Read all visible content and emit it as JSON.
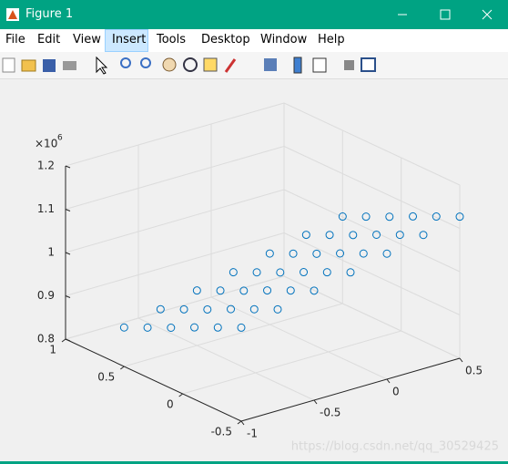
{
  "window": {
    "title": "Figure 1",
    "menu": [
      "File",
      "Edit",
      "View",
      "Insert",
      "Tools",
      "Desktop",
      "Window",
      "Help"
    ],
    "watermark": "https://blog.csdn.net/qq_30529425"
  },
  "chart_data": {
    "type": "scatter3",
    "x": [
      -1,
      -1,
      -1,
      -1,
      -1,
      -1,
      -0.75,
      -0.75,
      -0.75,
      -0.75,
      -0.75,
      -0.75,
      -0.5,
      -0.5,
      -0.5,
      -0.5,
      -0.5,
      -0.5,
      -0.25,
      -0.25,
      -0.25,
      -0.25,
      -0.25,
      -0.25,
      0,
      0,
      0,
      0,
      0,
      0,
      0.25,
      0.25,
      0.25,
      0.25,
      0.25,
      0.25,
      0.5,
      0.5,
      0.5,
      0.5,
      0.5,
      0.5
    ],
    "y": [
      -0.5,
      -0.3,
      -0.1,
      0.1,
      0.3,
      0.5,
      -0.5,
      -0.3,
      -0.1,
      0.1,
      0.3,
      0.5,
      -0.5,
      -0.3,
      -0.1,
      0.1,
      0.3,
      0.5,
      -0.5,
      -0.3,
      -0.1,
      0.1,
      0.3,
      0.5,
      -0.5,
      -0.3,
      -0.1,
      0.1,
      0.3,
      0.5,
      -0.5,
      -0.3,
      -0.1,
      0.1,
      0.3,
      0.5,
      -0.5,
      -0.3,
      -0.1,
      0.1,
      0.3,
      0.5
    ],
    "z": [
      1016000,
      991000,
      966000,
      940000,
      915000,
      890000,
      1034000,
      1009000,
      984000,
      958000,
      933000,
      908000,
      1053000,
      1028000,
      1003000,
      977000,
      952000,
      927000,
      1071000,
      1046000,
      1021000,
      995000,
      970000,
      945000,
      1090000,
      1065000,
      1040000,
      1014000,
      989000,
      964000,
      1109000,
      1084000,
      1059000,
      1033000,
      1008000,
      983000,
      1127000,
      1102000,
      1077000,
      1051000,
      1026000,
      1001000
    ],
    "color": "#0072bd",
    "xlim": [
      -1,
      0.5
    ],
    "xticks": [
      -1,
      -0.5,
      0,
      0.5
    ],
    "ylim": [
      -0.5,
      1
    ],
    "yticks": [
      -0.5,
      0,
      0.5,
      1
    ],
    "zlim": [
      800000,
      1200000
    ],
    "zticks": [
      {
        "value": 800000,
        "label": "0.8"
      },
      {
        "value": 900000,
        "label": "0.9"
      },
      {
        "value": 1000000,
        "label": "1"
      },
      {
        "value": 1100000,
        "label": "1.1"
      },
      {
        "value": 1200000,
        "label": "1.2"
      }
    ],
    "z_exponent_base": "×10",
    "z_exponent": "6",
    "grid": true
  }
}
